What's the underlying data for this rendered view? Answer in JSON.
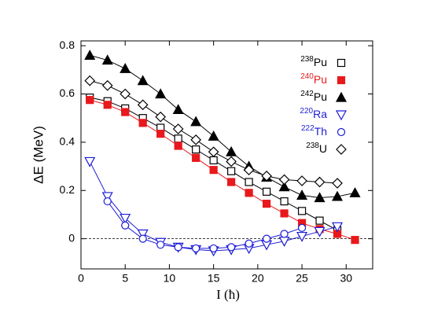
{
  "chart_data": {
    "type": "line",
    "xlabel": "I (ħ)",
    "ylabel": "ΔE (MeV)",
    "xlim": [
      0,
      33
    ],
    "ylim": [
      -0.125,
      0.82
    ],
    "xticks": [
      0,
      5,
      10,
      15,
      20,
      25,
      30
    ],
    "yticks": [
      0,
      0.2,
      0.4,
      0.6,
      0.8
    ],
    "reference_line": 0,
    "series": [
      {
        "name": "238Pu",
        "color": "#000000",
        "marker": "square",
        "filled": false,
        "x": [
          1,
          3,
          5,
          7,
          9,
          11,
          13,
          15,
          17,
          19,
          21,
          23,
          25,
          27,
          29
        ],
        "values": [
          0.585,
          0.57,
          0.54,
          0.5,
          0.46,
          0.415,
          0.37,
          0.325,
          0.28,
          0.235,
          0.195,
          0.155,
          0.115,
          0.075,
          0.035
        ]
      },
      {
        "name": "240Pu",
        "color": "#e8191c",
        "marker": "square",
        "filled": true,
        "x": [
          1,
          3,
          5,
          7,
          9,
          11,
          13,
          15,
          17,
          19,
          21,
          23,
          25,
          27,
          29,
          31
        ],
        "values": [
          0.575,
          0.555,
          0.525,
          0.48,
          0.435,
          0.385,
          0.335,
          0.285,
          0.235,
          0.19,
          0.145,
          0.105,
          0.065,
          0.04,
          0.02,
          -0.005
        ]
      },
      {
        "name": "242Pu",
        "color": "#000000",
        "marker": "triangle-up",
        "filled": true,
        "x": [
          1,
          3,
          5,
          7,
          9,
          11,
          13,
          15,
          17,
          19,
          21,
          23,
          25,
          27,
          29,
          31
        ],
        "values": [
          0.76,
          0.74,
          0.705,
          0.655,
          0.6,
          0.535,
          0.485,
          0.425,
          0.36,
          0.3,
          0.255,
          0.215,
          0.18,
          0.17,
          0.175,
          0.19
        ]
      },
      {
        "name": "220Ra",
        "color": "#1c1cd6",
        "marker": "triangle-down",
        "filled": false,
        "x": [
          1,
          3,
          5,
          7,
          9,
          11,
          13,
          15,
          17,
          19,
          21,
          23,
          25,
          27,
          29
        ],
        "values": [
          0.32,
          0.175,
          0.085,
          0.02,
          -0.015,
          -0.035,
          -0.045,
          -0.05,
          -0.045,
          -0.04,
          -0.025,
          -0.01,
          0.01,
          0.03,
          0.05
        ]
      },
      {
        "name": "222Th",
        "color": "#1c1cd6",
        "marker": "circle",
        "filled": false,
        "x": [
          3,
          5,
          7,
          9,
          11,
          13,
          15,
          17,
          19,
          21,
          23,
          25
        ],
        "values": [
          0.155,
          0.055,
          0.0,
          -0.025,
          -0.035,
          -0.04,
          -0.04,
          -0.035,
          -0.02,
          0.0,
          0.02,
          0.045
        ]
      },
      {
        "name": "238U",
        "color": "#000000",
        "marker": "diamond",
        "filled": false,
        "x": [
          1,
          3,
          5,
          7,
          9,
          11,
          13,
          15,
          17,
          19,
          21,
          23,
          25,
          27,
          29
        ],
        "values": [
          0.655,
          0.635,
          0.6,
          0.555,
          0.505,
          0.455,
          0.41,
          0.36,
          0.32,
          0.285,
          0.26,
          0.245,
          0.24,
          0.235,
          0.23
        ]
      }
    ]
  }
}
